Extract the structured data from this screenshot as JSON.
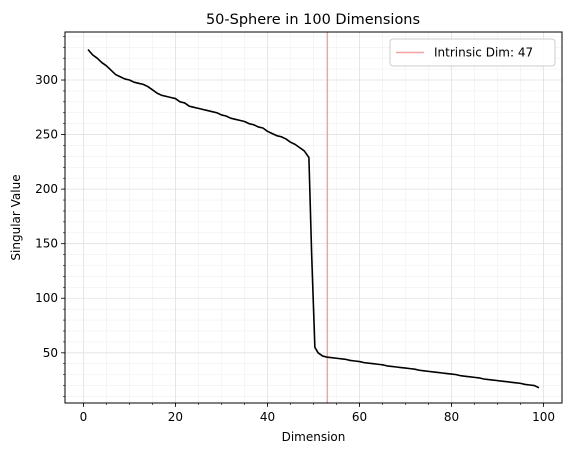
{
  "chart_data": {
    "type": "line",
    "title": "50-Sphere in 100 Dimensions",
    "xlabel": "Dimension",
    "ylabel": "Singular Value",
    "xlim": [
      -4,
      104
    ],
    "ylim": [
      4,
      344
    ],
    "xticks": [
      0,
      20,
      40,
      60,
      80,
      100
    ],
    "yticks": [
      50,
      100,
      150,
      200,
      250,
      300
    ],
    "grid": true,
    "legend_position": "top-right",
    "series": [
      {
        "type": "line",
        "color": "#000000",
        "points": [
          [
            1,
            328
          ],
          [
            2,
            323
          ],
          [
            3,
            320
          ],
          [
            4,
            316
          ],
          [
            5,
            313
          ],
          [
            6,
            309
          ],
          [
            7,
            305
          ],
          [
            8,
            303
          ],
          [
            9,
            301
          ],
          [
            10,
            300
          ],
          [
            11,
            298
          ],
          [
            12,
            297
          ],
          [
            13,
            296
          ],
          [
            14,
            294
          ],
          [
            15,
            291
          ],
          [
            16,
            288
          ],
          [
            17,
            286
          ],
          [
            18,
            285
          ],
          [
            19,
            284
          ],
          [
            20,
            283
          ],
          [
            21,
            280
          ],
          [
            22,
            279
          ],
          [
            23,
            276
          ],
          [
            24,
            275
          ],
          [
            25,
            274
          ],
          [
            26,
            273
          ],
          [
            27,
            272
          ],
          [
            28,
            271
          ],
          [
            29,
            270
          ],
          [
            30,
            268
          ],
          [
            31,
            267
          ],
          [
            32,
            265
          ],
          [
            33,
            264
          ],
          [
            34,
            263
          ],
          [
            35,
            262
          ],
          [
            36,
            260
          ],
          [
            37,
            259
          ],
          [
            38,
            257
          ],
          [
            39,
            256
          ],
          [
            40,
            253
          ],
          [
            41,
            251
          ],
          [
            42,
            249
          ],
          [
            43,
            248
          ],
          [
            44,
            246
          ],
          [
            45,
            243
          ],
          [
            46,
            241
          ],
          [
            47,
            238
          ],
          [
            48,
            235
          ],
          [
            49,
            229
          ],
          [
            49.6,
            140
          ],
          [
            50.3,
            55
          ],
          [
            51,
            50
          ],
          [
            52,
            47
          ],
          [
            53,
            46
          ],
          [
            54,
            45.5
          ],
          [
            55,
            45
          ],
          [
            56,
            44.5
          ],
          [
            57,
            44
          ],
          [
            58,
            43
          ],
          [
            59,
            42.5
          ],
          [
            60,
            42
          ],
          [
            61,
            41
          ],
          [
            62,
            40.5
          ],
          [
            63,
            40
          ],
          [
            64,
            39.5
          ],
          [
            65,
            39
          ],
          [
            66,
            38
          ],
          [
            67,
            37.5
          ],
          [
            68,
            37
          ],
          [
            69,
            36.5
          ],
          [
            70,
            36
          ],
          [
            71,
            35.5
          ],
          [
            72,
            35
          ],
          [
            73,
            34
          ],
          [
            74,
            33.5
          ],
          [
            75,
            33
          ],
          [
            76,
            32.5
          ],
          [
            77,
            32
          ],
          [
            78,
            31.5
          ],
          [
            79,
            31
          ],
          [
            80,
            30.5
          ],
          [
            81,
            30
          ],
          [
            82,
            29
          ],
          [
            83,
            28.5
          ],
          [
            84,
            28
          ],
          [
            85,
            27.5
          ],
          [
            86,
            27
          ],
          [
            87,
            26
          ],
          [
            88,
            25.5
          ],
          [
            89,
            25
          ],
          [
            90,
            24.5
          ],
          [
            91,
            24
          ],
          [
            92,
            23.5
          ],
          [
            93,
            23
          ],
          [
            94,
            22.5
          ],
          [
            95,
            22
          ],
          [
            96,
            21
          ],
          [
            97,
            20.5
          ],
          [
            98,
            20
          ],
          [
            99,
            18
          ]
        ]
      }
    ],
    "reference_lines": [
      {
        "orientation": "vertical",
        "x": 53,
        "color": "#f4a3a3",
        "legend_label": "Intrinsic Dim: 47"
      }
    ]
  }
}
